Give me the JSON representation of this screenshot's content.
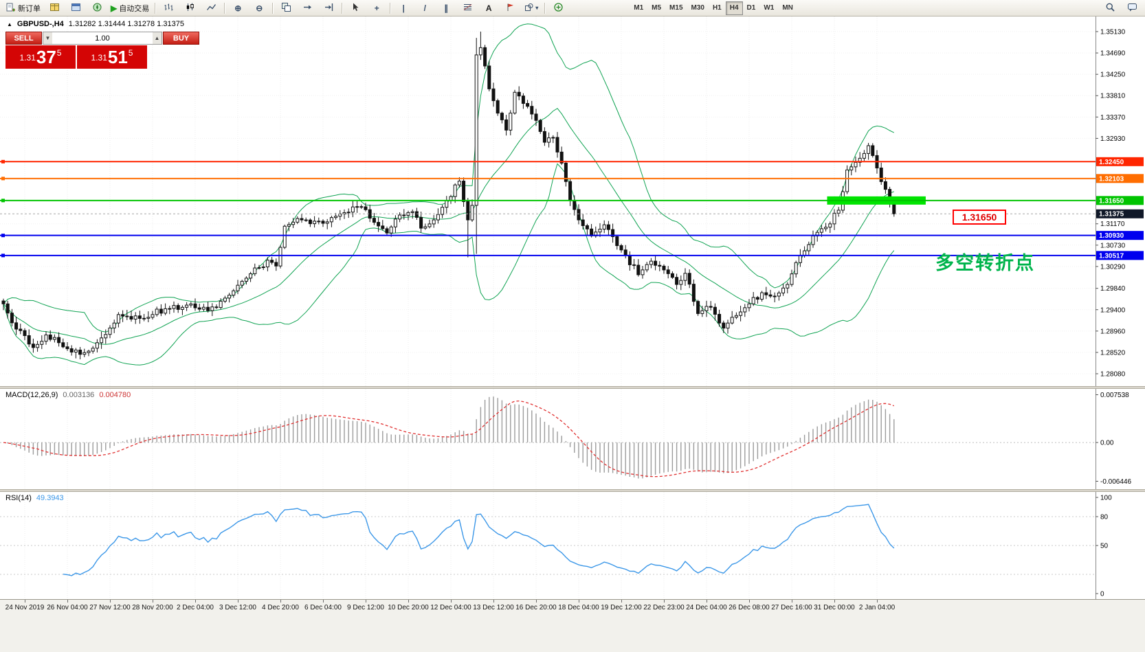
{
  "toolbar": {
    "new_order_label": "新订单",
    "autotrade_label": "自动交易",
    "timeframes": [
      "M1",
      "M5",
      "M15",
      "M30",
      "H1",
      "H4",
      "D1",
      "W1",
      "MN"
    ],
    "active_timeframe": "H4",
    "icon_glyphs": {
      "play": "▶",
      "zoom_in": "⊕",
      "zoom_out": "⊖",
      "crosshair": "+",
      "vertical_line": "|",
      "trendline": "/",
      "channel": "∥",
      "text_tool": "A",
      "shapes_dropdown": "▾"
    },
    "icon_names": [
      "new-order",
      "market-watch",
      "data-window",
      "navigator",
      "auto-trading",
      "bar-chart",
      "candlestick-chart",
      "line-chart",
      "zoom-in",
      "zoom-out",
      "tile-windows",
      "auto-scroll",
      "chart-shift",
      "cursor",
      "crosshair",
      "vertical-line",
      "trendline",
      "equidistant-channel",
      "fibonacci",
      "text",
      "arrow-label",
      "shapes",
      "indicators",
      "search",
      "community"
    ]
  },
  "chart_header": {
    "marker": "▲",
    "symbol": "GBPUSD-,H4",
    "ohlc": "1.31282 1.31444 1.31278 1.31375"
  },
  "trade_panel": {
    "sell_label": "SELL",
    "buy_label": "BUY",
    "lot_value": "1.00",
    "lot_down": "▼",
    "lot_up": "▲",
    "sell_price_small": "1.31",
    "sell_price_big": "37",
    "sell_price_sup": "5",
    "buy_price_small": "1.31",
    "buy_price_big": "51",
    "buy_price_sup": "5"
  },
  "chart_data": {
    "type": "candlestick",
    "symbol": "GBPUSD-",
    "timeframe": "H4",
    "n_candles": 210,
    "price_min": 1.2808,
    "price_max": 1.3513,
    "close_anchors": [
      [
        0,
        1.2952
      ],
      [
        3,
        1.29
      ],
      [
        7,
        1.2862
      ],
      [
        10,
        1.2888
      ],
      [
        13,
        1.2872
      ],
      [
        18,
        1.2848
      ],
      [
        22,
        1.2872
      ],
      [
        27,
        1.293
      ],
      [
        32,
        1.2922
      ],
      [
        38,
        1.2942
      ],
      [
        44,
        1.2952
      ],
      [
        48,
        1.2938
      ],
      [
        53,
        1.297
      ],
      [
        57,
        1.3005
      ],
      [
        62,
        1.3042
      ],
      [
        64,
        1.303
      ],
      [
        66,
        1.3112
      ],
      [
        70,
        1.3125
      ],
      [
        75,
        1.3118
      ],
      [
        80,
        1.314
      ],
      [
        84,
        1.3152
      ],
      [
        87,
        1.312
      ],
      [
        90,
        1.3098
      ],
      [
        93,
        1.3135
      ],
      [
        96,
        1.3142
      ],
      [
        98,
        1.3108
      ],
      [
        101,
        1.3125
      ],
      [
        104,
        1.3165
      ],
      [
        107,
        1.3205
      ],
      [
        109,
        1.3125
      ],
      [
        110,
        1.3155
      ],
      [
        111,
        1.3465
      ],
      [
        112,
        1.348
      ],
      [
        114,
        1.3395
      ],
      [
        116,
        1.3345
      ],
      [
        118,
        1.331
      ],
      [
        120,
        1.3388
      ],
      [
        122,
        1.3365
      ],
      [
        125,
        1.333
      ],
      [
        127,
        1.3285
      ],
      [
        129,
        1.3295
      ],
      [
        131,
        1.3242
      ],
      [
        133,
        1.3165
      ],
      [
        135,
        1.3125
      ],
      [
        138,
        1.3092
      ],
      [
        141,
        1.3115
      ],
      [
        144,
        1.3072
      ],
      [
        146,
        1.3052
      ],
      [
        149,
        1.3012
      ],
      [
        152,
        1.304
      ],
      [
        155,
        1.3022
      ],
      [
        158,
        1.2992
      ],
      [
        160,
        1.3015
      ],
      [
        163,
        1.2932
      ],
      [
        166,
        1.2945
      ],
      [
        169,
        1.2902
      ],
      [
        172,
        1.2928
      ],
      [
        175,
        1.2952
      ],
      [
        178,
        1.2975
      ],
      [
        181,
        1.2968
      ],
      [
        184,
        1.2992
      ],
      [
        187,
        1.3052
      ],
      [
        190,
        1.3092
      ],
      [
        193,
        1.311
      ],
      [
        196,
        1.3145
      ],
      [
        198,
        1.3228
      ],
      [
        201,
        1.3252
      ],
      [
        203,
        1.3278
      ],
      [
        205,
        1.3232
      ],
      [
        207,
        1.3188
      ],
      [
        209,
        1.31375
      ]
    ],
    "wick_overrides": {
      "109": {
        "low": 1.3048
      },
      "111": {
        "high": 1.35,
        "low": 1.3055
      },
      "112": {
        "high": 1.3513
      }
    },
    "bollinger": {
      "period": 20,
      "deviation": 2,
      "color": "#0fa352"
    },
    "horizontal_lines": [
      {
        "price": 1.3245,
        "color": "#ff2600",
        "tag": "1.32450"
      },
      {
        "price": 1.32103,
        "color": "#ff6d00",
        "tag": "1.32103"
      },
      {
        "price": 1.3165,
        "color": "#00c400",
        "tag": "1.31650"
      },
      {
        "price": 1.3093,
        "color": "#0000ee",
        "tag": "1.30930"
      },
      {
        "price": 1.30517,
        "color": "#0000ee",
        "tag": "1.30517"
      }
    ],
    "current_price": {
      "value": 1.31375,
      "tag": "1.31375",
      "tag_color": "#101828"
    },
    "highlight_band": {
      "price": 1.3165,
      "x_start_frac": 0.755,
      "x_end_frac": 0.845,
      "color": "#00e400",
      "thickness": 12
    },
    "price_axis_ticks": [
      "1.35130",
      "1.34690",
      "1.34250",
      "1.33810",
      "1.33370",
      "1.32930",
      "1.31170",
      "1.30730",
      "1.30290",
      "1.29840",
      "1.29400",
      "1.28960",
      "1.28520",
      "1.28080"
    ],
    "time_labels": [
      "24 Nov 2019",
      "26 Nov 04:00",
      "27 Nov 12:00",
      "28 Nov 20:00",
      "2 Dec 04:00",
      "3 Dec 12:00",
      "4 Dec 20:00",
      "6 Dec 04:00",
      "9 Dec 12:00",
      "10 Dec 20:00",
      "12 Dec 04:00",
      "13 Dec 12:00",
      "16 Dec 20:00",
      "18 Dec 04:00",
      "19 Dec 12:00",
      "22 Dec 23:00",
      "24 Dec 04:00",
      "26 Dec 08:00",
      "27 Dec 16:00",
      "31 Dec 00:00",
      "2 Jan 04:00"
    ],
    "macd": {
      "label": "MACD(12,26,9)",
      "value_main": "0.003136",
      "value_signal": "0.004780",
      "axis_max": "0.007538",
      "axis_zero": "0.00",
      "axis_min": "-0.006446",
      "bar_color": "#9b9b9b",
      "signal_color": "#e03030"
    },
    "rsi": {
      "label": "RSI(14)",
      "value": "49.3943",
      "axis": [
        "100",
        "80",
        "50",
        "0"
      ],
      "levels": [
        80,
        50,
        20
      ],
      "line_color": "#3b97e8"
    },
    "annotation": {
      "text": "多空转折点",
      "color": "#00b44c"
    },
    "price_label_box": {
      "text": "1.31650",
      "color": "#ff0000"
    }
  }
}
